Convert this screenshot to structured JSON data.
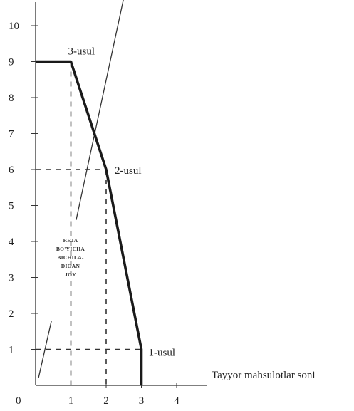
{
  "chart_data": {
    "type": "line",
    "title": "",
    "xlabel": "Tayyor mahsulotlar soni",
    "ylabel": "",
    "xlim": [
      0,
      4.6
    ],
    "ylim": [
      0,
      10.7
    ],
    "x_ticks": [
      1,
      2,
      3,
      4
    ],
    "y_ticks": [
      1,
      2,
      3,
      4,
      5,
      6,
      7,
      8,
      9,
      10
    ],
    "origin_label": "0",
    "grid": false,
    "series": [
      {
        "points": [
          [
            0,
            9
          ],
          [
            1,
            9
          ],
          [
            2,
            6
          ],
          [
            3,
            1
          ],
          [
            3,
            0
          ]
        ]
      }
    ],
    "guide_lines": [
      {
        "from": [
          1,
          9
        ],
        "to": [
          1,
          0
        ]
      },
      {
        "from": [
          0,
          6
        ],
        "to": [
          2,
          6
        ]
      },
      {
        "from": [
          2,
          6
        ],
        "to": [
          2,
          0
        ]
      },
      {
        "from": [
          0,
          1
        ],
        "to": [
          3,
          1
        ]
      }
    ],
    "extra_lines": [
      {
        "from": [
          1.15,
          4.6
        ],
        "to": [
          2.55,
          11
        ]
      },
      {
        "from": [
          0.08,
          0.2
        ],
        "to": [
          0.45,
          1.8
        ]
      }
    ],
    "annotations": [
      {
        "text": "3-usul",
        "x": 1,
        "y": 9
      },
      {
        "text": "2-usul",
        "x": 2,
        "y": 6
      },
      {
        "text": "1-usul",
        "x": 3,
        "y": 1
      }
    ],
    "region_label": [
      "REJA",
      "BO'YICHA",
      "BICHILA-",
      "DIGAN",
      "JOY"
    ]
  }
}
